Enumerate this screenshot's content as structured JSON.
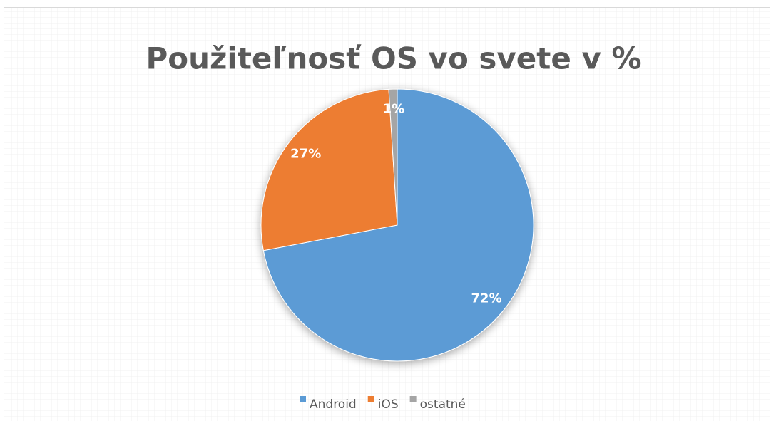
{
  "chart_data": {
    "type": "pie",
    "title": "Použiteľnosť OS vo svete v %",
    "categories": [
      "Android",
      "iOS",
      "ostatné"
    ],
    "values": [
      72,
      27,
      1
    ],
    "value_labels": [
      "72%",
      "27%",
      "1%"
    ],
    "colors": [
      "#5b9bd5",
      "#ed7d31",
      "#a5a5a5"
    ],
    "legend": "bottom"
  }
}
